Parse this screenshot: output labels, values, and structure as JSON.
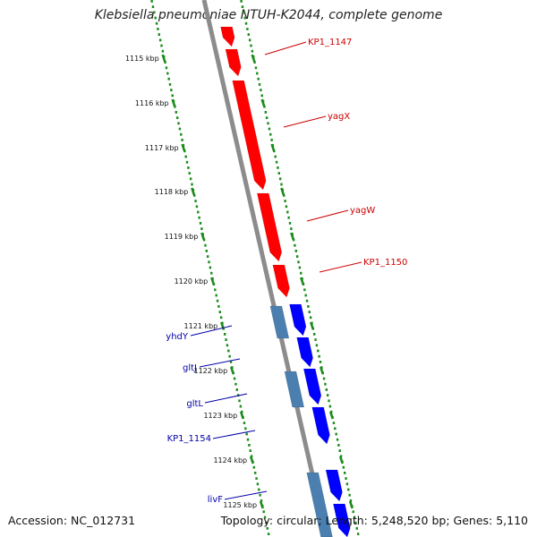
{
  "title": "Klebsiella pneumoniae NTUH-K2044, complete genome",
  "footer": {
    "accession": "Accession: NC_012731",
    "summary": "Topology: circular; Length: 5,248,520 bp; Genes: 5,110"
  },
  "colors": {
    "backbone": "#8c8c8c",
    "tick_dots": "#1a8c1a",
    "forward_gene": "#ff0000",
    "label_forward": "#cc0000",
    "reverse_gene": "#0000ff",
    "reverse_gene_light": "#4a7fb0",
    "label_reverse": "#0000aa"
  },
  "ticks": [
    {
      "label": "1115 kbp"
    },
    {
      "label": "1116 kbp"
    },
    {
      "label": "1117 kbp"
    },
    {
      "label": "1118 kbp"
    },
    {
      "label": "1119 kbp"
    },
    {
      "label": "1120 kbp"
    },
    {
      "label": "1121 kbp"
    },
    {
      "label": "1122 kbp"
    },
    {
      "label": "1123 kbp"
    },
    {
      "label": "1124 kbp"
    },
    {
      "label": "1125 kbp"
    }
  ],
  "forward_genes": [
    {
      "label": "KP1_1147"
    },
    {
      "label": "yagX"
    },
    {
      "label": "yagW"
    },
    {
      "label": "KP1_1150"
    }
  ],
  "reverse_genes": [
    {
      "label": "yhdY"
    },
    {
      "label": "gltJ"
    },
    {
      "label": "gltL"
    },
    {
      "label": "KP1_1154"
    },
    {
      "label": "livF"
    }
  ]
}
